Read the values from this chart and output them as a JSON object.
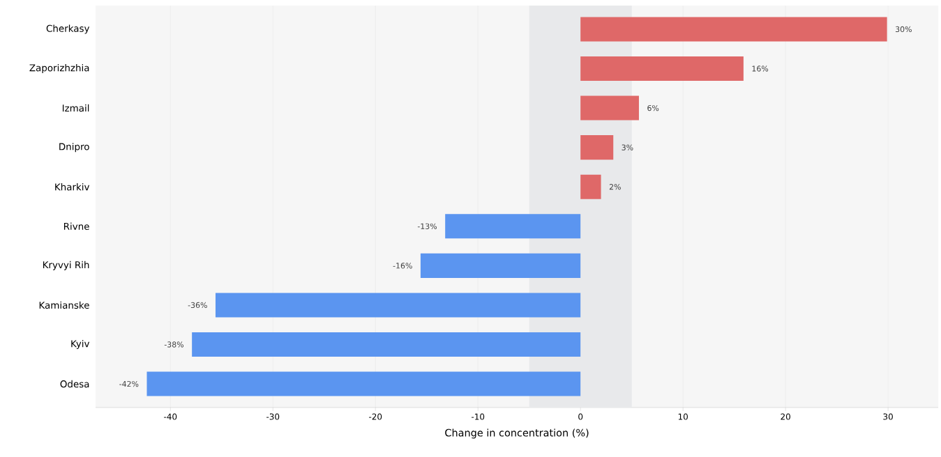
{
  "chart_data": {
    "type": "bar",
    "orientation": "horizontal",
    "xlabel": "Change in concentration (%)",
    "categories": [
      "Cherkasy",
      "Zaporizhzhia",
      "Izmail",
      "Dnipro",
      "Kharkiv",
      "Rivne",
      "Kryvyi Rih",
      "Kamianske",
      "Kyiv",
      "Odesa"
    ],
    "values": [
      29.9,
      15.9,
      5.7,
      3.2,
      2.0,
      -13.2,
      -15.6,
      -35.6,
      -37.9,
      -42.3
    ],
    "value_labels": [
      "30%",
      "16%",
      "6%",
      "3%",
      "2%",
      "-13%",
      "-16%",
      "-36%",
      "-38%",
      "-42%"
    ],
    "colors": [
      "#df6868",
      "#df6868",
      "#df6868",
      "#df6868",
      "#df6868",
      "#5b95f0",
      "#5b95f0",
      "#5b95f0",
      "#5b95f0",
      "#5b95f0"
    ],
    "bands": [
      {
        "axis": "x",
        "from": -5,
        "to": 5,
        "color": "#e8e9eb"
      }
    ],
    "xlim": [
      -47.3,
      34.9
    ],
    "xticks": [
      -40,
      -30,
      -20,
      -10,
      0,
      10,
      20,
      30
    ],
    "grid": "x"
  }
}
